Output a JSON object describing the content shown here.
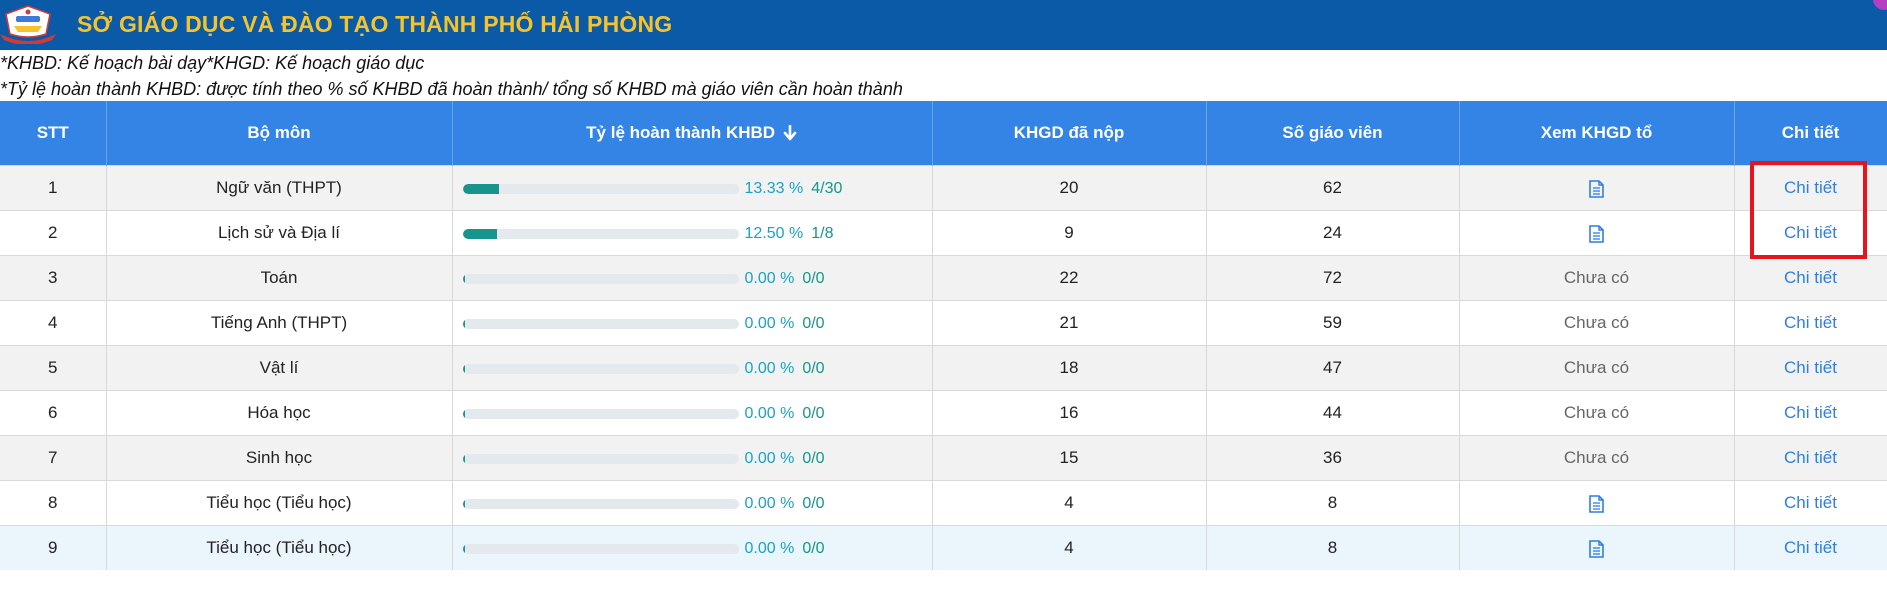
{
  "header": {
    "title": "SỞ GIÁO DỤC VÀ ĐÀO TẠO THÀNH PHỐ HẢI PHÒNG",
    "background": "#0a5aa8",
    "title_color": "#f5c42c",
    "logo_icon": "school-emblem-icon"
  },
  "notes": [
    "*KHBD: Kế hoạch bài dạy*KHGD: Kế hoạch giáo dục",
    "*Tỷ lệ hoàn thành KHBD: được tính theo % số KHBD đã hoàn thành/ tổng số KHBD mà giáo viên cần hoàn thành"
  ],
  "table": {
    "header_color": "#3484e6",
    "columns": [
      "STT",
      "Bộ môn",
      "Tỷ lệ hoàn thành KHBD",
      "KHGD đã nộp",
      "Số giáo viên",
      "Xem KHGD tổ",
      "Chi tiết"
    ],
    "sort_icon": "arrow-down-icon",
    "rows": [
      {
        "stt": "1",
        "subject": "Ngữ văn (THPT)",
        "rate": 13.33,
        "rate_text": "13.33 %",
        "fraction": "4/30",
        "khgd_submitted": "20",
        "teachers": "62",
        "view": "document-icon",
        "detail": "Chi tiết"
      },
      {
        "stt": "2",
        "subject": "Lịch sử và Địa lí",
        "rate": 12.5,
        "rate_text": "12.50 %",
        "fraction": "1/8",
        "khgd_submitted": "9",
        "teachers": "24",
        "view": "document-icon",
        "detail": "Chi tiết"
      },
      {
        "stt": "3",
        "subject": "Toán",
        "rate": 0,
        "rate_text": "0.00 %",
        "fraction": "0/0",
        "khgd_submitted": "22",
        "teachers": "72",
        "view": "Chưa có",
        "detail": "Chi tiết"
      },
      {
        "stt": "4",
        "subject": "Tiếng Anh (THPT)",
        "rate": 0,
        "rate_text": "0.00 %",
        "fraction": "0/0",
        "khgd_submitted": "21",
        "teachers": "59",
        "view": "Chưa có",
        "detail": "Chi tiết"
      },
      {
        "stt": "5",
        "subject": "Vật lí",
        "rate": 0,
        "rate_text": "0.00 %",
        "fraction": "0/0",
        "khgd_submitted": "18",
        "teachers": "47",
        "view": "Chưa có",
        "detail": "Chi tiết"
      },
      {
        "stt": "6",
        "subject": "Hóa học",
        "rate": 0,
        "rate_text": "0.00 %",
        "fraction": "0/0",
        "khgd_submitted": "16",
        "teachers": "44",
        "view": "Chưa có",
        "detail": "Chi tiết"
      },
      {
        "stt": "7",
        "subject": "Sinh học",
        "rate": 0,
        "rate_text": "0.00 %",
        "fraction": "0/0",
        "khgd_submitted": "15",
        "teachers": "36",
        "view": "Chưa có",
        "detail": "Chi tiết"
      },
      {
        "stt": "8",
        "subject": "Tiểu học (Tiểu học)",
        "rate": 0,
        "rate_text": "0.00 %",
        "fraction": "0/0",
        "khgd_submitted": "4",
        "teachers": "8",
        "view": "document-icon",
        "detail": "Chi tiết"
      },
      {
        "stt": "9",
        "subject": "Tiểu học (Tiểu học)",
        "rate": 0,
        "rate_text": "0.00 %",
        "fraction": "0/0",
        "khgd_submitted": "4",
        "teachers": "8",
        "view": "document-icon",
        "detail": "Chi tiết"
      }
    ]
  },
  "annotation": {
    "color": "#e8141c"
  }
}
